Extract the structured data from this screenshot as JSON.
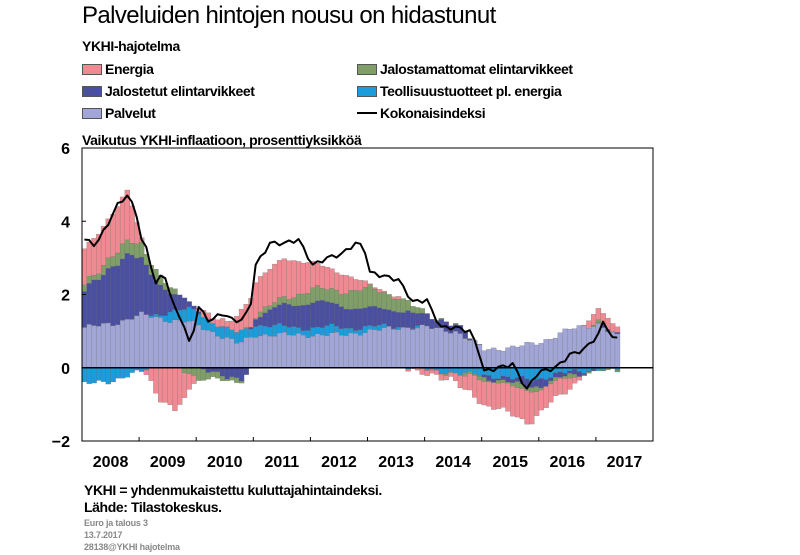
{
  "title": "Palveluiden hintojen nousu on hidastunut",
  "subtitle": "YKHI-hajotelma",
  "footer": {
    "note": "YKHI = yhdenmukaistettu kuluttajahintaindeksi.",
    "source": "Lähde: Tilastokeskus.",
    "meta1": "Euro ja talous 3",
    "meta2": "13.7.2017",
    "meta3": "28138@YKHI hajotelma"
  },
  "colors": {
    "energia": "#ef8a92",
    "jalostamattomat": "#7f9e68",
    "jalostetut": "#4b4f9f",
    "teollisuus": "#1b9ddb",
    "palvelut": "#a2a6d6",
    "kokonais": "#000000"
  },
  "chart_data": {
    "type": "bar",
    "stacked": true,
    "ylabel": "Vaikutus YKHI-inflaatioon, prosenttiyksikköä",
    "xlabel": "",
    "ylim": [
      -2,
      6
    ],
    "yticks": [
      "−2",
      "0",
      "2",
      "4",
      "6"
    ],
    "xlim": [
      2008,
      2018
    ],
    "xticks": [
      "2008",
      "2009",
      "2010",
      "2011",
      "2012",
      "2013",
      "2014",
      "2015",
      "2016",
      "2017"
    ],
    "x_start": "2008-01",
    "legend": [
      {
        "key": "energia",
        "label": "Energia",
        "kind": "bar"
      },
      {
        "key": "jalostamattomat",
        "label": "Jalostamattomat elintarvikkeet",
        "kind": "bar"
      },
      {
        "key": "jalostetut",
        "label": "Jalostetut elintarvikkeet",
        "kind": "bar"
      },
      {
        "key": "teollisuus",
        "label": "Teollisuustuotteet pl. energia",
        "kind": "bar"
      },
      {
        "key": "palvelut",
        "label": "Palvelut",
        "kind": "bar"
      },
      {
        "key": "kokonais",
        "label": "Kokonaisindeksi",
        "kind": "line"
      }
    ],
    "series": [
      {
        "name": "Palvelut",
        "key": "palvelut",
        "anchors": [
          [
            2008.0,
            1.1
          ],
          [
            2008.5,
            1.2
          ],
          [
            2009.0,
            1.45
          ],
          [
            2009.5,
            1.3
          ],
          [
            2009.85,
            1.25
          ],
          [
            2010.5,
            0.8
          ],
          [
            2010.7,
            0.65
          ],
          [
            2011.0,
            0.9
          ],
          [
            2011.5,
            0.9
          ],
          [
            2012.0,
            0.9
          ],
          [
            2012.5,
            0.9
          ],
          [
            2013.0,
            1.0
          ],
          [
            2013.5,
            1.1
          ],
          [
            2014.0,
            1.1
          ],
          [
            2014.5,
            1.0
          ],
          [
            2015.0,
            0.5
          ],
          [
            2015.5,
            0.55
          ],
          [
            2016.0,
            0.7
          ],
          [
            2016.5,
            1.05
          ],
          [
            2017.0,
            1.2
          ],
          [
            2017.42,
            0.75
          ]
        ]
      },
      {
        "name": "Teollisuustuotteet pl. energia",
        "key": "teollisuus",
        "anchors": [
          [
            2008.0,
            -0.45
          ],
          [
            2008.5,
            -0.35
          ],
          [
            2009.0,
            -0.1
          ],
          [
            2009.5,
            0.25
          ],
          [
            2010.0,
            0.35
          ],
          [
            2010.5,
            0.25
          ],
          [
            2011.0,
            0.3
          ],
          [
            2011.5,
            0.2
          ],
          [
            2012.0,
            0.2
          ],
          [
            2012.5,
            0.2
          ],
          [
            2013.0,
            0.1
          ],
          [
            2013.5,
            0.05
          ],
          [
            2014.0,
            -0.05
          ],
          [
            2014.5,
            -0.15
          ],
          [
            2015.0,
            -0.2
          ],
          [
            2015.5,
            -0.3
          ],
          [
            2016.0,
            -0.3
          ],
          [
            2016.5,
            -0.1
          ],
          [
            2017.0,
            -0.05
          ],
          [
            2017.42,
            -0.05
          ]
        ]
      },
      {
        "name": "Jalostetut elintarvikkeet",
        "key": "jalostetut",
        "anchors": [
          [
            2008.0,
            1.0
          ],
          [
            2008.5,
            1.6
          ],
          [
            2008.8,
            1.75
          ],
          [
            2009.0,
            1.5
          ],
          [
            2009.5,
            0.5
          ],
          [
            2010.0,
            0.05
          ],
          [
            2010.5,
            -0.3
          ],
          [
            2010.75,
            -0.3
          ],
          [
            2011.0,
            0.2
          ],
          [
            2011.5,
            0.6
          ],
          [
            2012.0,
            0.7
          ],
          [
            2012.5,
            0.6
          ],
          [
            2013.0,
            0.5
          ],
          [
            2013.5,
            0.45
          ],
          [
            2014.0,
            0.3
          ],
          [
            2014.5,
            0.2
          ],
          [
            2015.0,
            -0.05
          ],
          [
            2015.5,
            -0.15
          ],
          [
            2016.0,
            -0.2
          ],
          [
            2016.5,
            -0.1
          ],
          [
            2017.0,
            0.0
          ],
          [
            2017.42,
            0.05
          ]
        ]
      },
      {
        "name": "Jalostamattomat elintarvikkeet",
        "key": "jalostamattomat",
        "anchors": [
          [
            2008.0,
            0.15
          ],
          [
            2008.5,
            0.3
          ],
          [
            2009.0,
            0.4
          ],
          [
            2009.5,
            0.15
          ],
          [
            2010.0,
            -0.3
          ],
          [
            2010.5,
            -0.1
          ],
          [
            2011.0,
            0.05
          ],
          [
            2011.5,
            0.2
          ],
          [
            2012.0,
            0.35
          ],
          [
            2012.5,
            0.4
          ],
          [
            2013.0,
            0.55
          ],
          [
            2013.5,
            0.35
          ],
          [
            2014.0,
            0.05
          ],
          [
            2014.5,
            -0.05
          ],
          [
            2015.0,
            -0.05
          ],
          [
            2015.5,
            -0.1
          ],
          [
            2016.0,
            -0.1
          ],
          [
            2016.5,
            -0.05
          ],
          [
            2017.0,
            0.0
          ],
          [
            2017.42,
            -0.05
          ]
        ]
      },
      {
        "name": "Energia",
        "key": "energia",
        "anchors": [
          [
            2008.0,
            1.0
          ],
          [
            2008.5,
            1.1
          ],
          [
            2008.75,
            1.4
          ],
          [
            2009.0,
            0.2
          ],
          [
            2009.3,
            -0.9
          ],
          [
            2009.6,
            -1.15
          ],
          [
            2010.0,
            0.1
          ],
          [
            2010.5,
            0.2
          ],
          [
            2011.0,
            0.9
          ],
          [
            2011.5,
            1.1
          ],
          [
            2012.0,
            0.7
          ],
          [
            2012.5,
            0.5
          ],
          [
            2013.0,
            0.1
          ],
          [
            2013.5,
            0.0
          ],
          [
            2014.0,
            -0.1
          ],
          [
            2014.5,
            -0.2
          ],
          [
            2015.0,
            -0.7
          ],
          [
            2015.5,
            -0.75
          ],
          [
            2015.8,
            -0.9
          ],
          [
            2016.0,
            -0.6
          ],
          [
            2016.5,
            -0.3
          ],
          [
            2017.0,
            0.35
          ],
          [
            2017.42,
            0.2
          ]
        ]
      }
    ],
    "line": {
      "name": "Kokonaisindeksi",
      "key": "kokonais",
      "anchors": [
        [
          2008.0,
          3.5
        ],
        [
          2008.2,
          3.35
        ],
        [
          2008.4,
          3.9
        ],
        [
          2008.6,
          4.5
        ],
        [
          2008.75,
          4.7
        ],
        [
          2008.9,
          4.3
        ],
        [
          2009.0,
          3.5
        ],
        [
          2009.1,
          3.2
        ],
        [
          2009.25,
          2.3
        ],
        [
          2009.4,
          2.6
        ],
        [
          2009.55,
          1.7
        ],
        [
          2009.7,
          1.35
        ],
        [
          2009.85,
          0.6
        ],
        [
          2010.0,
          1.65
        ],
        [
          2010.2,
          1.25
        ],
        [
          2010.4,
          1.5
        ],
        [
          2010.6,
          1.3
        ],
        [
          2010.75,
          1.3
        ],
        [
          2010.9,
          1.6
        ],
        [
          2011.0,
          2.8
        ],
        [
          2011.25,
          3.4
        ],
        [
          2011.5,
          3.4
        ],
        [
          2011.75,
          3.5
        ],
        [
          2012.0,
          2.8
        ],
        [
          2012.25,
          3.0
        ],
        [
          2012.5,
          3.1
        ],
        [
          2012.75,
          3.4
        ],
        [
          2012.9,
          3.3
        ],
        [
          2013.0,
          2.6
        ],
        [
          2013.25,
          2.5
        ],
        [
          2013.5,
          2.4
        ],
        [
          2013.75,
          1.8
        ],
        [
          2014.0,
          1.85
        ],
        [
          2014.1,
          1.5
        ],
        [
          2014.25,
          1.1
        ],
        [
          2014.5,
          1.1
        ],
        [
          2014.75,
          1.0
        ],
        [
          2014.9,
          0.5
        ],
        [
          2015.0,
          -0.1
        ],
        [
          2015.25,
          0.0
        ],
        [
          2015.5,
          0.1
        ],
        [
          2015.75,
          -0.6
        ],
        [
          2015.9,
          -0.2
        ],
        [
          2016.0,
          -0.1
        ],
        [
          2016.25,
          0.0
        ],
        [
          2016.5,
          0.35
        ],
        [
          2016.75,
          0.5
        ],
        [
          2017.0,
          0.9
        ],
        [
          2017.1,
          1.3
        ],
        [
          2017.25,
          0.8
        ],
        [
          2017.42,
          0.8
        ]
      ]
    }
  }
}
